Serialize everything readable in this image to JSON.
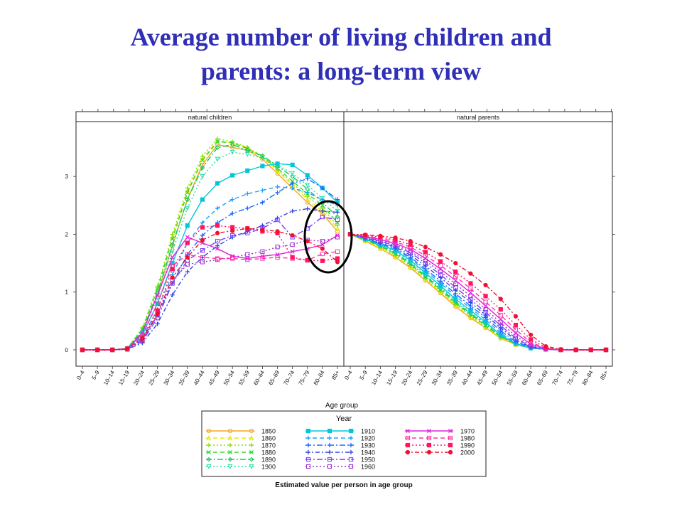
{
  "slide": {
    "title_line1": "Average number of living children and",
    "title_line2": "parents: a long-term view"
  },
  "chart_data": {
    "type": "line",
    "panels": [
      "natural children",
      "natural parents"
    ],
    "xlabel": "Age group",
    "ylabel": "",
    "ylim": [
      0,
      3.9
    ],
    "yticks": [
      0,
      1,
      2,
      3
    ],
    "categories": [
      "0–4",
      "5–9",
      "10–14",
      "15–19",
      "20–24",
      "25–29",
      "30–34",
      "35–39",
      "40–44",
      "45–49",
      "50–54",
      "55–59",
      "60–64",
      "65–69",
      "70–74",
      "75–79",
      "80–84",
      "85+"
    ],
    "grid": false,
    "legend": {
      "position": "bottom",
      "title": "Year",
      "caption": "Estimated value per person in age group",
      "columns": 3
    },
    "series": [
      {
        "name": "1850",
        "color": "#f5a623",
        "dash": "",
        "marker": "circle-open",
        "children": [
          0,
          0,
          0,
          0.02,
          0.3,
          0.95,
          1.8,
          2.6,
          3.2,
          3.55,
          3.5,
          3.45,
          3.3,
          3.05,
          2.8,
          2.55,
          2.35,
          2.05
        ],
        "parents": [
          2,
          1.88,
          1.75,
          1.6,
          1.42,
          1.2,
          0.98,
          0.75,
          0.55,
          0.38,
          0.2,
          0.09,
          0.03,
          0.01,
          0,
          0,
          0,
          0
        ]
      },
      {
        "name": "1860",
        "color": "#e8e800",
        "dash": "6,4",
        "marker": "triangle",
        "children": [
          0,
          0,
          0,
          0.03,
          0.35,
          1.05,
          1.95,
          2.75,
          3.3,
          3.62,
          3.58,
          3.5,
          3.33,
          3.1,
          2.85,
          2.6,
          2.4,
          2.1
        ],
        "parents": [
          2,
          1.89,
          1.76,
          1.62,
          1.44,
          1.22,
          1,
          0.77,
          0.57,
          0.39,
          0.21,
          0.09,
          0.03,
          0.01,
          0,
          0,
          0,
          0
        ]
      },
      {
        "name": "1870",
        "color": "#88e000",
        "dash": "2,3",
        "marker": "plus",
        "children": [
          0,
          0,
          0,
          0.03,
          0.38,
          1.1,
          2,
          2.8,
          3.35,
          3.65,
          3.6,
          3.5,
          3.35,
          3.12,
          2.88,
          2.65,
          2.45,
          2.15
        ],
        "parents": [
          2,
          1.9,
          1.78,
          1.64,
          1.46,
          1.24,
          1.02,
          0.79,
          0.59,
          0.4,
          0.22,
          0.1,
          0.03,
          0.01,
          0,
          0,
          0,
          0
        ]
      },
      {
        "name": "1880",
        "color": "#33d633",
        "dash": "6,4",
        "marker": "cross",
        "children": [
          0,
          0,
          0,
          0.03,
          0.36,
          1.05,
          1.92,
          2.72,
          3.28,
          3.6,
          3.58,
          3.48,
          3.34,
          3.14,
          2.92,
          2.7,
          2.5,
          2.2
        ],
        "parents": [
          2,
          1.9,
          1.79,
          1.66,
          1.48,
          1.26,
          1.04,
          0.81,
          0.61,
          0.42,
          0.23,
          0.1,
          0.03,
          0.01,
          0,
          0,
          0,
          0
        ]
      },
      {
        "name": "1890",
        "color": "#11c866",
        "dash": "8,3,2,3",
        "marker": "diamond",
        "children": [
          0,
          0,
          0,
          0.03,
          0.33,
          0.98,
          1.82,
          2.6,
          3.15,
          3.5,
          3.55,
          3.45,
          3.36,
          3.18,
          3,
          2.78,
          2.55,
          2.3
        ],
        "parents": [
          2,
          1.91,
          1.8,
          1.68,
          1.5,
          1.28,
          1.06,
          0.83,
          0.63,
          0.44,
          0.24,
          0.1,
          0.03,
          0.01,
          0,
          0,
          0,
          0
        ]
      },
      {
        "name": "1900",
        "color": "#22e0a8",
        "dash": "2,3",
        "marker": "triangle-down",
        "children": [
          0,
          0,
          0,
          0.02,
          0.3,
          0.9,
          1.7,
          2.45,
          3,
          3.3,
          3.42,
          3.38,
          3.32,
          3.2,
          3.05,
          2.85,
          2.62,
          2.4
        ],
        "parents": [
          2,
          1.91,
          1.81,
          1.7,
          1.52,
          1.3,
          1.08,
          0.85,
          0.65,
          0.46,
          0.25,
          0.11,
          0.03,
          0.01,
          0,
          0,
          0,
          0
        ]
      },
      {
        "name": "1910",
        "color": "#00c8d8",
        "dash": "",
        "marker": "square",
        "children": [
          0,
          0,
          0,
          0.02,
          0.27,
          0.8,
          1.5,
          2.15,
          2.6,
          2.88,
          3.02,
          3.1,
          3.18,
          3.22,
          3.2,
          3.02,
          2.8,
          2.55
        ],
        "parents": [
          2,
          1.92,
          1.82,
          1.72,
          1.55,
          1.33,
          1.11,
          0.88,
          0.68,
          0.48,
          0.26,
          0.11,
          0.03,
          0.01,
          0,
          0,
          0,
          0
        ]
      },
      {
        "name": "1920",
        "color": "#22a0ff",
        "dash": "6,4",
        "marker": "plus",
        "children": [
          0,
          0,
          0,
          0.02,
          0.22,
          0.7,
          1.3,
          1.85,
          2.2,
          2.45,
          2.6,
          2.7,
          2.76,
          2.82,
          2.8,
          2.72,
          2.6,
          2.5
        ],
        "parents": [
          2,
          1.92,
          1.83,
          1.74,
          1.58,
          1.37,
          1.15,
          0.93,
          0.72,
          0.52,
          0.29,
          0.12,
          0.04,
          0.01,
          0,
          0,
          0,
          0
        ]
      },
      {
        "name": "1930",
        "color": "#1e6aff",
        "dash": "8,3,2,3",
        "marker": "plus",
        "children": [
          0,
          0,
          0,
          0.01,
          0.18,
          0.6,
          1.15,
          1.65,
          1.98,
          2.2,
          2.36,
          2.45,
          2.55,
          2.72,
          2.88,
          2.96,
          2.8,
          2.6
        ],
        "parents": [
          2,
          1.93,
          1.84,
          1.76,
          1.6,
          1.4,
          1.19,
          0.97,
          0.76,
          0.56,
          0.33,
          0.14,
          0.04,
          0.01,
          0,
          0,
          0,
          0
        ]
      },
      {
        "name": "1940",
        "color": "#3344dd",
        "dash": "6,3,2,3",
        "marker": "plus",
        "children": [
          0,
          0,
          0,
          0.01,
          0.12,
          0.45,
          0.95,
          1.35,
          1.6,
          1.8,
          1.95,
          2.05,
          2.15,
          2.28,
          2.4,
          2.44,
          2.4,
          2.38
        ],
        "parents": [
          2,
          1.94,
          1.86,
          1.78,
          1.64,
          1.45,
          1.25,
          1.03,
          0.82,
          0.6,
          0.38,
          0.17,
          0.05,
          0.01,
          0,
          0,
          0,
          0
        ]
      },
      {
        "name": "1950",
        "color": "#7a3cff",
        "dash": "8,3,2,3",
        "marker": "square-open",
        "children": [
          0,
          0,
          0,
          0.01,
          0.15,
          0.55,
          1.15,
          1.55,
          1.72,
          1.88,
          1.98,
          2.02,
          2.1,
          2.25,
          1.95,
          2.1,
          2.3,
          2.25
        ],
        "parents": [
          2,
          1.95,
          1.88,
          1.8,
          1.68,
          1.5,
          1.3,
          1.08,
          0.87,
          0.65,
          0.42,
          0.2,
          0.06,
          0.01,
          0,
          0,
          0,
          0
        ]
      },
      {
        "name": "1960",
        "color": "#9933cc",
        "dash": "2,3",
        "marker": "square-open",
        "children": [
          0,
          0,
          0,
          0.01,
          0.16,
          0.6,
          1.2,
          1.48,
          1.52,
          1.56,
          1.6,
          1.65,
          1.7,
          1.78,
          1.82,
          1.9,
          1.88,
          1.95
        ],
        "parents": [
          2,
          1.95,
          1.89,
          1.82,
          1.71,
          1.54,
          1.35,
          1.14,
          0.93,
          0.7,
          0.47,
          0.24,
          0.08,
          0.02,
          0,
          0,
          0,
          0
        ]
      },
      {
        "name": "1970",
        "color": "#e020e0",
        "dash": "",
        "marker": "cross",
        "children": [
          0,
          0,
          0,
          0.02,
          0.3,
          0.95,
          1.6,
          1.95,
          1.85,
          1.75,
          1.62,
          1.58,
          1.62,
          1.65,
          1.7,
          1.75,
          1.82,
          1.98
        ],
        "parents": [
          2,
          1.96,
          1.91,
          1.84,
          1.74,
          1.58,
          1.4,
          1.2,
          0.99,
          0.76,
          0.53,
          0.29,
          0.1,
          0.02,
          0,
          0,
          0,
          0
        ]
      },
      {
        "name": "1980",
        "color": "#ff33aa",
        "dash": "6,4",
        "marker": "square-open",
        "children": [
          0,
          0,
          0,
          0.02,
          0.25,
          0.8,
          1.45,
          1.65,
          1.6,
          1.58,
          1.58,
          1.56,
          1.58,
          1.6,
          1.58,
          1.55,
          1.66,
          1.7
        ],
        "parents": [
          2,
          1.97,
          1.93,
          1.87,
          1.78,
          1.63,
          1.46,
          1.27,
          1.06,
          0.83,
          0.6,
          0.35,
          0.13,
          0.03,
          0,
          0,
          0,
          0
        ]
      },
      {
        "name": "1990",
        "color": "#ff1560",
        "dash": "2,3",
        "marker": "square",
        "children": [
          0,
          0,
          0,
          0.02,
          0.2,
          0.68,
          1.4,
          1.85,
          2.12,
          2.15,
          2.12,
          2.1,
          2.05,
          2.02,
          1.6,
          1.55,
          1.54,
          1.58
        ],
        "parents": [
          2,
          1.98,
          1.95,
          1.9,
          1.82,
          1.69,
          1.53,
          1.35,
          1.15,
          0.93,
          0.7,
          0.43,
          0.18,
          0.04,
          0,
          0,
          0,
          0
        ]
      },
      {
        "name": "2000",
        "color": "#ee1133",
        "dash": "6,3,2,3",
        "marker": "dot",
        "children": [
          0,
          0,
          0,
          0.02,
          0.2,
          0.62,
          1.25,
          1.6,
          1.9,
          2.02,
          2.06,
          2.1,
          2.08,
          2.05,
          1.98,
          1.88,
          1.75,
          1.52
        ],
        "parents": [
          2,
          1.99,
          1.97,
          1.94,
          1.88,
          1.78,
          1.65,
          1.5,
          1.32,
          1.12,
          0.88,
          0.58,
          0.26,
          0.06,
          0.01,
          0,
          0,
          0
        ]
      }
    ],
    "annotation": "circle"
  }
}
